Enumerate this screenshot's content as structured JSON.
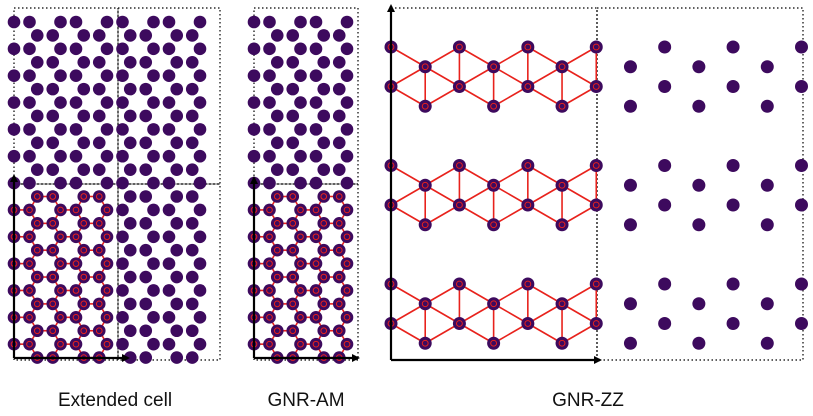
{
  "panels": [
    {
      "id": "extended",
      "caption": "Extended cell"
    },
    {
      "id": "gnr-am",
      "caption": "GNR-AM"
    },
    {
      "id": "gnr-zz",
      "caption": "GNR-ZZ"
    }
  ],
  "colors": {
    "atom": "#3d0a5e",
    "bond": "#e8221c",
    "cell_border": "#000000",
    "axis": "#000000",
    "background": "#ffffff"
  }
}
